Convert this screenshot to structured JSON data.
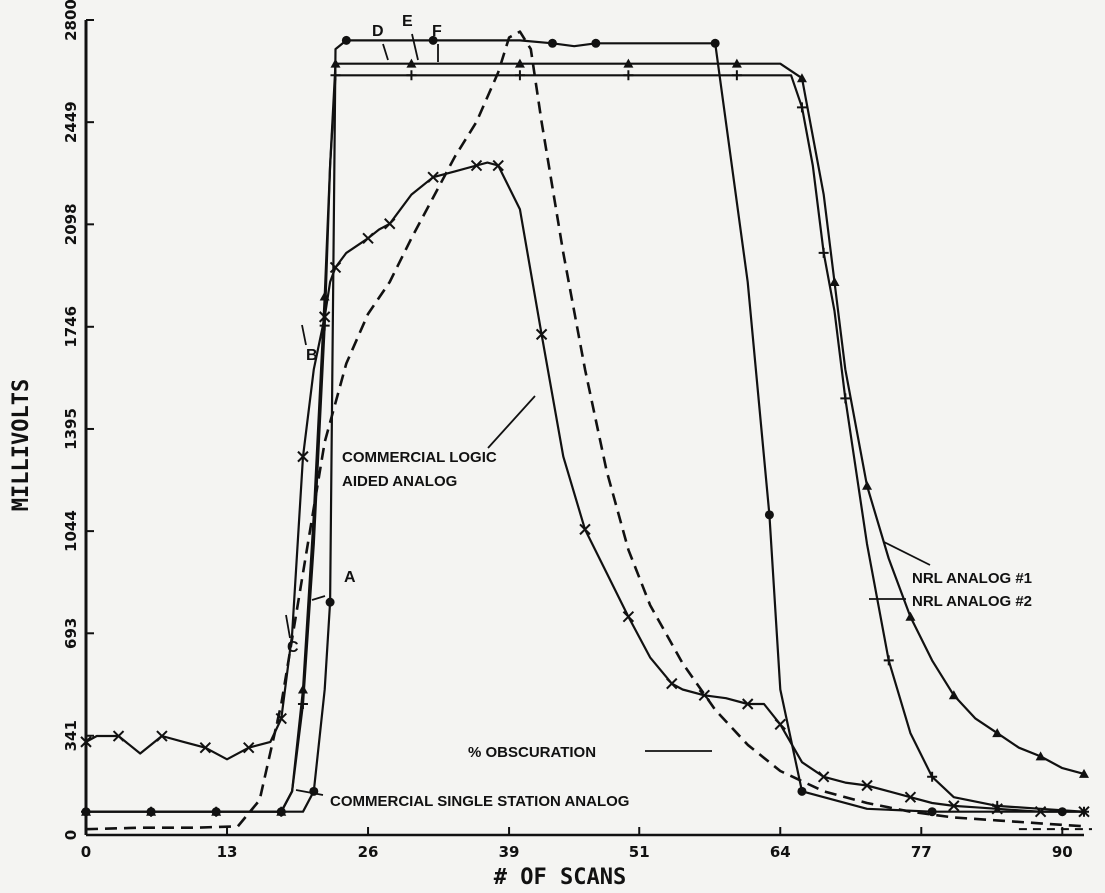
{
  "chart_data": {
    "type": "line",
    "title": "",
    "xlabel": "# OF SCANS",
    "ylabel": "MILLIVOLTS",
    "xlim": [
      0,
      92
    ],
    "ylim": [
      0,
      2800
    ],
    "x_ticks": [
      0,
      13,
      26,
      39,
      51,
      64,
      77,
      90
    ],
    "x_tick_labels": [
      "0",
      "13",
      "26",
      "39",
      "51",
      "64",
      "77",
      "90"
    ],
    "y_ticks": [
      0,
      341,
      693,
      1044,
      1395,
      1746,
      2098,
      2449,
      2800
    ],
    "y_tick_labels": [
      "0",
      "341",
      "693",
      "1044",
      "1395",
      "1746",
      "2098",
      "2449",
      "2800"
    ],
    "series": [
      {
        "name": "COMMERCIAL SINGLE STATION ANALOG",
        "marker": "dot",
        "x": [
          0,
          3,
          6,
          9,
          12,
          15,
          18,
          20,
          21,
          22,
          22.5,
          23,
          24,
          27,
          32,
          40,
          43,
          45,
          47,
          52,
          58,
          61,
          63,
          64,
          66,
          72,
          78,
          84,
          90,
          92
        ],
        "y": [
          80,
          80,
          80,
          80,
          80,
          80,
          80,
          80,
          150,
          500,
          800,
          2700,
          2730,
          2730,
          2730,
          2730,
          2720,
          2710,
          2720,
          2720,
          2720,
          1900,
          1100,
          500,
          150,
          90,
          80,
          80,
          80,
          80
        ]
      },
      {
        "name": "COMMERCIAL LOGIC AIDED ANALOG",
        "marker": "x",
        "x": [
          0,
          1,
          3,
          5,
          7,
          9,
          11,
          13,
          15,
          17,
          18,
          19,
          20,
          21,
          22,
          22.5,
          23,
          24,
          26,
          27,
          28,
          30,
          32,
          34,
          36,
          37,
          38,
          40,
          42,
          44,
          46,
          48,
          50,
          52,
          54,
          55,
          57,
          59,
          61,
          62.5,
          64,
          66,
          68,
          70,
          72,
          74,
          76,
          78,
          80,
          82,
          84,
          86,
          88,
          90,
          92
        ],
        "y": [
          320,
          340,
          340,
          280,
          340,
          320,
          300,
          260,
          300,
          320,
          400,
          690,
          1300,
          1600,
          1780,
          1900,
          1950,
          2000,
          2050,
          2080,
          2100,
          2200,
          2260,
          2280,
          2300,
          2310,
          2300,
          2150,
          1720,
          1300,
          1050,
          900,
          750,
          610,
          520,
          500,
          480,
          470,
          450,
          450,
          380,
          250,
          200,
          180,
          170,
          150,
          130,
          110,
          100,
          95,
          90,
          85,
          80,
          80,
          80
        ]
      },
      {
        "name": "NRL ANALOG #1",
        "marker": "triangle",
        "x": [
          0,
          3,
          6,
          9,
          12,
          15,
          18,
          19,
          20,
          21,
          22,
          22.5,
          23,
          26,
          30,
          35,
          40,
          45,
          50,
          55,
          60,
          64,
          66,
          68,
          69,
          70,
          72,
          74,
          76,
          78,
          80,
          82,
          84,
          86,
          88,
          90,
          92
        ],
        "y": [
          80,
          80,
          80,
          80,
          80,
          80,
          80,
          150,
          500,
          1100,
          1850,
          2300,
          2650,
          2650,
          2650,
          2650,
          2650,
          2650,
          2650,
          2650,
          2650,
          2650,
          2600,
          2200,
          1900,
          1600,
          1200,
          950,
          750,
          600,
          480,
          400,
          350,
          300,
          270,
          230,
          210
        ]
      },
      {
        "name": "NRL ANALOG #2",
        "marker": "plus",
        "x": [
          0,
          3,
          6,
          9,
          12,
          15,
          18,
          19,
          20,
          21,
          22,
          22.5,
          23,
          26,
          30,
          35,
          40,
          45,
          50,
          55,
          60,
          65,
          66,
          67,
          68,
          69,
          70,
          72,
          74,
          76,
          78,
          80,
          84,
          88,
          92
        ],
        "y": [
          80,
          80,
          80,
          80,
          80,
          80,
          80,
          150,
          450,
          1000,
          1750,
          2300,
          2610,
          2610,
          2610,
          2610,
          2610,
          2610,
          2610,
          2610,
          2610,
          2610,
          2500,
          2300,
          2000,
          1800,
          1500,
          1000,
          600,
          350,
          200,
          130,
          100,
          90,
          80
        ]
      },
      {
        "name": "% OBSCURATION",
        "marker": "none",
        "dashed": true,
        "x": [
          0,
          5,
          10,
          14,
          16,
          18,
          20,
          22,
          24,
          26,
          28,
          30,
          32,
          34,
          36,
          38,
          39,
          40,
          41,
          42,
          44,
          46,
          48,
          50,
          52,
          55,
          58,
          61,
          64,
          68,
          72,
          76,
          80,
          84,
          88,
          92
        ],
        "y": [
          20,
          25,
          25,
          30,
          120,
          450,
          900,
          1350,
          1620,
          1790,
          1900,
          2050,
          2190,
          2330,
          2450,
          2620,
          2740,
          2760,
          2700,
          2450,
          2000,
          1600,
          1250,
          980,
          790,
          590,
          430,
          310,
          220,
          150,
          110,
          80,
          60,
          50,
          40,
          30
        ]
      }
    ],
    "annotations": {
      "logic": [
        "COMMERCIAL LOGIC",
        "AIDED ANALOG"
      ],
      "obscuration": "% OBSCURATION",
      "single_station": "COMMERCIAL SINGLE STATION ANALOG",
      "nrl1": "NRL ANALOG #1",
      "nrl2": "NRL ANALOG #2",
      "letters": [
        "A",
        "B",
        "C",
        "D",
        "E",
        "F"
      ]
    }
  }
}
